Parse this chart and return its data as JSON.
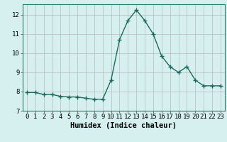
{
  "x": [
    0,
    1,
    2,
    3,
    4,
    5,
    6,
    7,
    8,
    9,
    10,
    11,
    12,
    13,
    14,
    15,
    16,
    17,
    18,
    19,
    20,
    21,
    22,
    23
  ],
  "y": [
    7.95,
    7.95,
    7.85,
    7.85,
    7.75,
    7.72,
    7.72,
    7.65,
    7.6,
    7.6,
    8.6,
    10.7,
    11.7,
    12.25,
    11.7,
    11.0,
    9.85,
    9.3,
    9.0,
    9.3,
    8.6,
    8.3,
    8.3,
    8.3
  ],
  "line_color": "#1a6b5e",
  "marker": "+",
  "marker_size": 4,
  "marker_linewidth": 1.0,
  "line_width": 1.0,
  "bg_color": "#d6f0f0",
  "grid_color": "#b8b8b8",
  "grid_linewidth": 0.5,
  "xlabel": "Humidex (Indice chaleur)",
  "xlabel_fontsize": 7.5,
  "tick_fontsize": 6.5,
  "ylabel_ticks": [
    7,
    8,
    9,
    10,
    11,
    12
  ],
  "xlim": [
    -0.5,
    23.5
  ],
  "ylim": [
    7.0,
    12.55
  ]
}
